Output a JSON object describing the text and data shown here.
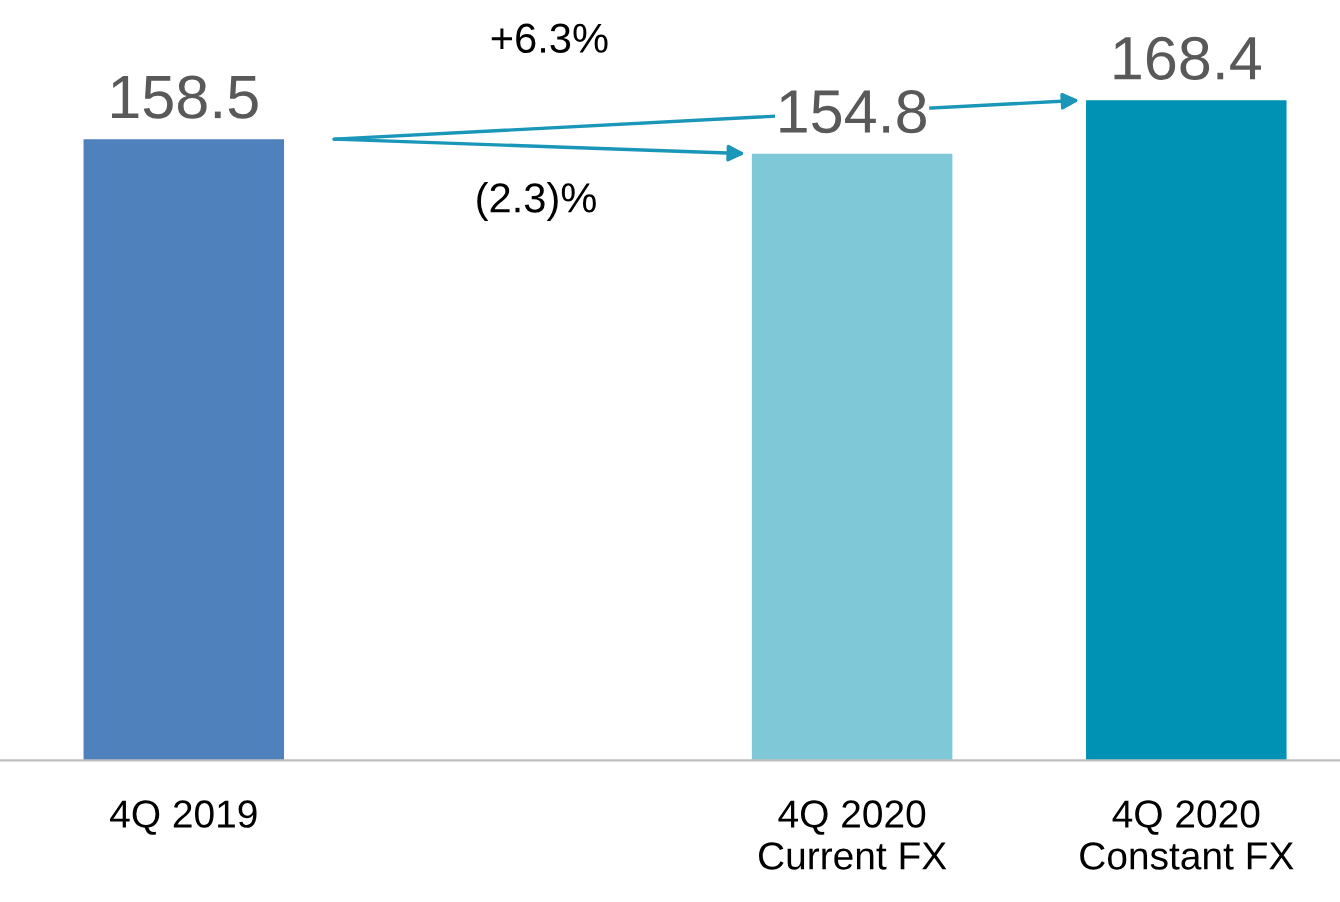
{
  "chart_data": {
    "type": "bar",
    "categories": [
      "4Q 2019",
      null,
      "4Q 2020\nCurrent FX",
      "4Q 2020\nConstant FX"
    ],
    "values": [
      158.5,
      null,
      154.8,
      168.4
    ],
    "colors": [
      "#4f81bd",
      "#4f81bd",
      "#7fc8d8",
      "#0092b4"
    ],
    "data_labels": true,
    "grid": false,
    "legend": false,
    "annotations": [
      "+6.3%",
      "(2.3)%"
    ]
  }
}
